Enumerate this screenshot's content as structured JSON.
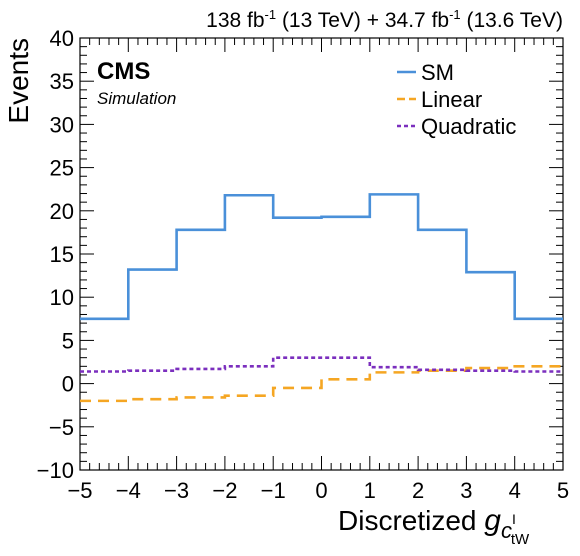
{
  "chart_data": {
    "type": "line",
    "drawstyle": "steps",
    "header_right": "138 fb-1 (13 TeV) + 34.7 fb-1 (13.6 TeV)",
    "header_parts": [
      {
        "text": "138 fb",
        "sup": false
      },
      {
        "text": "-1",
        "sup": true
      },
      {
        "text": " (13 TeV) + 34.7 fb",
        "sup": false
      },
      {
        "text": "-1",
        "sup": true
      },
      {
        "text": " (13.6 TeV)",
        "sup": false
      }
    ],
    "cms_label": "CMS",
    "cms_sublabel": "Simulation",
    "xlabel": "Discretized g_{c_tW^I}",
    "xlabel_main": "Discretized ",
    "xlabel_symbol": "g",
    "xlabel_sub1": "c",
    "xlabel_sub2": "tW",
    "xlabel_sup2": "I",
    "ylabel": "Events",
    "xlim": [
      -5,
      5
    ],
    "ylim": [
      -10,
      40
    ],
    "xticks": [
      -5,
      -4,
      -3,
      -2,
      -1,
      0,
      1,
      2,
      3,
      4,
      5
    ],
    "yticks": [
      -10,
      -5,
      0,
      5,
      10,
      15,
      20,
      25,
      30,
      35,
      40
    ],
    "legend_position": "top-right",
    "bin_edges": [
      -5,
      -4,
      -3,
      -2,
      -1,
      0,
      1,
      2,
      3,
      4,
      5
    ],
    "series": [
      {
        "name": "SM",
        "color": "#4a90d9",
        "style": "solid",
        "values": [
          7.5,
          13.2,
          17.8,
          21.8,
          19.2,
          19.3,
          21.9,
          17.8,
          12.9,
          7.5
        ]
      },
      {
        "name": "Linear",
        "color": "#f5a623",
        "style": "dashed",
        "values": [
          -2.0,
          -1.8,
          -1.6,
          -1.4,
          -0.5,
          0.5,
          1.3,
          1.5,
          1.8,
          2.0
        ]
      },
      {
        "name": "Quadratic",
        "color": "#7b2fbe",
        "style": "dotted",
        "values": [
          1.4,
          1.5,
          1.7,
          2.0,
          3.0,
          3.0,
          1.9,
          1.6,
          1.5,
          1.4
        ]
      }
    ]
  }
}
